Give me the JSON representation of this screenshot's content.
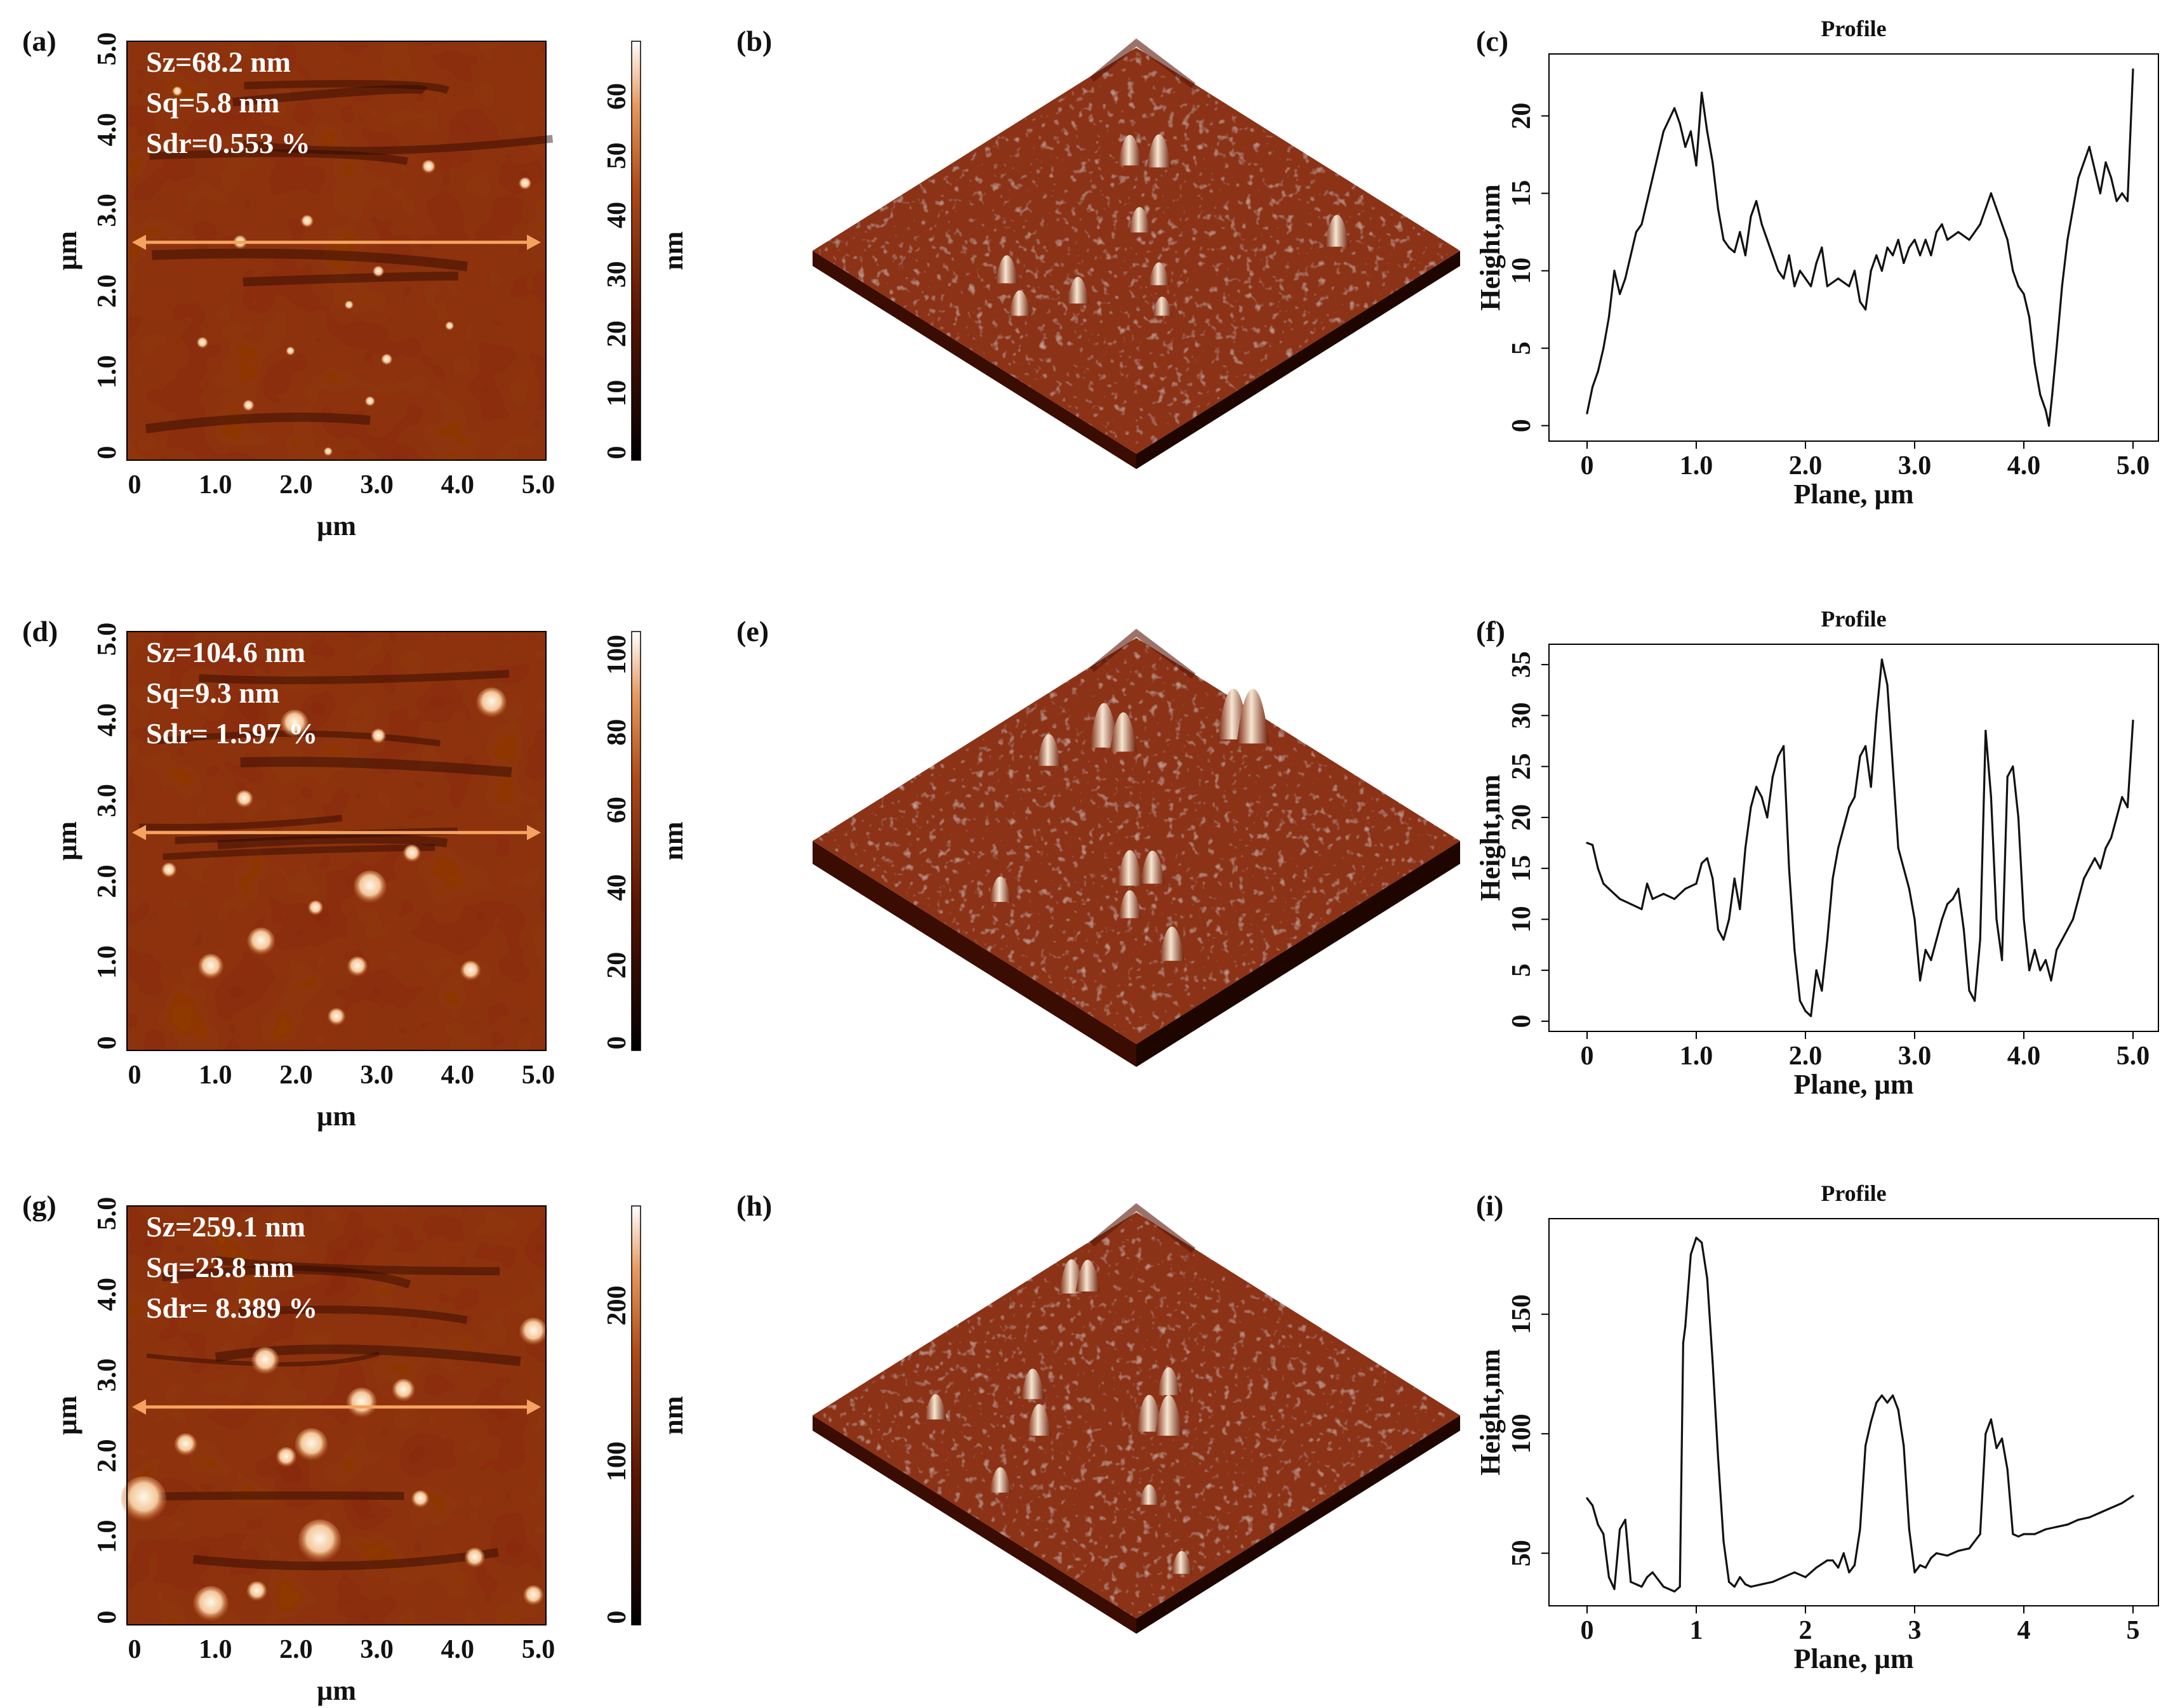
{
  "figure": {
    "rows": [
      {
        "labels": {
          "map": "(a)",
          "view3d": "(b)",
          "profile": "(c)"
        },
        "stats": [
          "Sz=68.2 nm",
          "Sq=5.8 nm",
          "Sdr=0.553 %"
        ],
        "map_x_ticks": [
          "0",
          "1.0",
          "2.0",
          "3.0",
          "4.0",
          "5.0"
        ],
        "map_y_ticks": [
          "0",
          "1.0",
          "2.0",
          "3.0",
          "4.0",
          "5.0"
        ],
        "map_x_label": "µm",
        "map_y_label": "µm",
        "colorbar_ticks": [
          "0",
          "10",
          "20",
          "30",
          "40",
          "50",
          "60"
        ],
        "colorbar_unit": "nm"
      },
      {
        "labels": {
          "map": "(d)",
          "view3d": "(e)",
          "profile": "(f)"
        },
        "stats": [
          "Sz=104.6 nm",
          "Sq=9.3 nm",
          "Sdr= 1.597 %"
        ],
        "map_x_ticks": [
          "0",
          "1.0",
          "2.0",
          "3.0",
          "4.0",
          "5.0"
        ],
        "map_y_ticks": [
          "0",
          "1.0",
          "2.0",
          "3.0",
          "4.0",
          "5.0"
        ],
        "map_x_label": "µm",
        "map_y_label": "µm",
        "colorbar_ticks": [
          "0",
          "20",
          "40",
          "60",
          "80",
          "100"
        ],
        "colorbar_unit": "nm"
      },
      {
        "labels": {
          "map": "(g)",
          "view3d": "(h)",
          "profile": "(i)"
        },
        "stats": [
          "Sz=259.1 nm",
          "Sq=23.8 nm",
          "Sdr= 8.389 %"
        ],
        "map_x_ticks": [
          "0",
          "1.0",
          "2.0",
          "3.0",
          "4.0",
          "5.0"
        ],
        "map_y_ticks": [
          "0",
          "1.0",
          "2.0",
          "3.0",
          "4.0",
          "5.0"
        ],
        "map_x_label": "µm",
        "map_y_label": "µm",
        "colorbar_ticks": [
          "0",
          "100",
          "200"
        ],
        "colorbar_unit": "nm"
      }
    ],
    "colors": {
      "afm_dark": "#2a0600",
      "afm_mid": "#8a2a0c",
      "afm_bright": "#fff2e0",
      "profile_arrow": "#f4a460",
      "line": "#111111"
    }
  },
  "chart_data": [
    {
      "type": "line",
      "title": "Profile",
      "xlabel": "Plane, µm",
      "ylabel": "Height,nm",
      "xlim": [
        0,
        5
      ],
      "ylim": [
        -1,
        24
      ],
      "x_ticks": [
        "0",
        "1.0",
        "2.0",
        "3.0",
        "4.0",
        "5.0"
      ],
      "y_ticks": [
        "0",
        "5",
        "10",
        "15",
        "20"
      ],
      "x": [
        0,
        0.05,
        0.1,
        0.15,
        0.2,
        0.25,
        0.3,
        0.35,
        0.4,
        0.45,
        0.5,
        0.55,
        0.6,
        0.7,
        0.8,
        0.85,
        0.9,
        0.95,
        1.0,
        1.05,
        1.1,
        1.15,
        1.2,
        1.25,
        1.3,
        1.35,
        1.4,
        1.45,
        1.5,
        1.55,
        1.6,
        1.65,
        1.7,
        1.75,
        1.8,
        1.85,
        1.9,
        1.95,
        2.0,
        2.05,
        2.1,
        2.15,
        2.2,
        2.3,
        2.4,
        2.45,
        2.5,
        2.55,
        2.6,
        2.65,
        2.7,
        2.75,
        2.8,
        2.85,
        2.9,
        2.95,
        3.0,
        3.05,
        3.1,
        3.15,
        3.2,
        3.25,
        3.3,
        3.4,
        3.5,
        3.6,
        3.7,
        3.75,
        3.8,
        3.85,
        3.9,
        3.95,
        4.0,
        4.05,
        4.1,
        4.15,
        4.2,
        4.23,
        4.26,
        4.3,
        4.35,
        4.4,
        4.45,
        4.5,
        4.55,
        4.6,
        4.65,
        4.7,
        4.75,
        4.8,
        4.85,
        4.9,
        4.95,
        5.0
      ],
      "values": [
        0.8,
        2.5,
        3.5,
        5,
        7,
        10,
        8.5,
        9.5,
        11,
        12.5,
        13,
        14.5,
        16,
        19,
        20.5,
        19.5,
        18,
        19,
        16.8,
        21.5,
        19,
        17,
        14,
        12,
        11.5,
        11.2,
        12.5,
        11,
        13.5,
        14.5,
        13,
        12,
        11,
        10,
        9.5,
        11,
        9,
        10,
        9.5,
        9,
        10.5,
        11.5,
        9,
        9.5,
        9,
        10,
        8,
        7.5,
        10,
        11,
        10,
        11.5,
        11,
        12,
        10.5,
        11.5,
        12,
        11,
        12,
        11,
        12.5,
        13,
        12,
        12.5,
        12,
        13,
        15,
        14,
        13,
        12,
        10,
        9,
        8.5,
        7,
        4,
        2,
        1,
        0,
        2,
        5,
        9,
        12,
        14,
        16,
        17,
        18,
        16.5,
        15,
        17,
        16,
        14.5,
        15,
        14.5,
        23
      ]
    },
    {
      "type": "line",
      "title": "Profile",
      "xlabel": "Plane, µm",
      "ylabel": "Height,nm",
      "xlim": [
        0,
        5
      ],
      "ylim": [
        -1,
        37
      ],
      "x_ticks": [
        "0",
        "1.0",
        "2.0",
        "3.0",
        "4.0",
        "5.0"
      ],
      "y_ticks": [
        "0",
        "5",
        "10",
        "15",
        "20",
        "25",
        "30",
        "35"
      ],
      "x": [
        0,
        0.05,
        0.1,
        0.15,
        0.2,
        0.3,
        0.4,
        0.5,
        0.55,
        0.6,
        0.7,
        0.8,
        0.9,
        1.0,
        1.05,
        1.1,
        1.15,
        1.2,
        1.25,
        1.3,
        1.35,
        1.4,
        1.45,
        1.5,
        1.55,
        1.6,
        1.65,
        1.7,
        1.75,
        1.8,
        1.85,
        1.9,
        1.95,
        2.0,
        2.05,
        2.1,
        2.15,
        2.2,
        2.25,
        2.3,
        2.35,
        2.4,
        2.45,
        2.5,
        2.55,
        2.6,
        2.65,
        2.7,
        2.75,
        2.8,
        2.85,
        2.9,
        2.95,
        3.0,
        3.05,
        3.1,
        3.15,
        3.2,
        3.25,
        3.3,
        3.35,
        3.4,
        3.45,
        3.5,
        3.55,
        3.6,
        3.65,
        3.7,
        3.75,
        3.8,
        3.85,
        3.9,
        3.95,
        4.0,
        4.05,
        4.1,
        4.15,
        4.2,
        4.25,
        4.3,
        4.35,
        4.4,
        4.45,
        4.5,
        4.55,
        4.6,
        4.65,
        4.7,
        4.75,
        4.8,
        4.85,
        4.9,
        4.95,
        5.0
      ],
      "values": [
        17.5,
        17.3,
        15,
        13.5,
        13,
        12,
        11.5,
        11,
        13.5,
        12,
        12.5,
        12,
        13,
        13.5,
        15.5,
        16,
        14,
        9,
        8,
        10,
        14,
        11,
        17,
        21,
        23,
        22,
        20,
        24,
        26,
        27,
        15,
        7,
        2,
        1,
        0.5,
        5,
        3,
        8,
        14,
        17,
        19,
        21,
        22,
        26,
        27,
        23,
        30,
        35.5,
        33,
        25,
        17,
        15,
        13,
        10,
        4,
        7,
        6,
        8,
        10,
        11.5,
        12,
        13,
        9,
        3,
        2,
        8,
        28.5,
        22,
        10,
        6,
        24,
        25,
        20,
        10,
        5,
        7,
        5,
        6,
        4,
        7,
        8,
        9,
        10,
        12,
        14,
        15,
        16,
        15,
        17,
        18,
        20,
        22,
        21,
        29.5
      ]
    },
    {
      "type": "line",
      "title": "Profile",
      "xlabel": "Plane, µm",
      "ylabel": "Height,nm",
      "xlim": [
        0,
        5
      ],
      "ylim": [
        28,
        190
      ],
      "x_ticks": [
        "0",
        "1",
        "2",
        "3",
        "4",
        "5"
      ],
      "y_ticks": [
        "50",
        "100",
        "150"
      ],
      "x": [
        0,
        0.05,
        0.1,
        0.15,
        0.2,
        0.25,
        0.3,
        0.35,
        0.4,
        0.45,
        0.5,
        0.55,
        0.6,
        0.7,
        0.8,
        0.85,
        0.88,
        0.9,
        0.95,
        1.0,
        1.05,
        1.1,
        1.15,
        1.2,
        1.25,
        1.3,
        1.35,
        1.4,
        1.45,
        1.5,
        1.6,
        1.7,
        1.8,
        1.9,
        2.0,
        2.1,
        2.2,
        2.25,
        2.3,
        2.35,
        2.4,
        2.45,
        2.5,
        2.55,
        2.6,
        2.65,
        2.7,
        2.75,
        2.8,
        2.85,
        2.9,
        2.95,
        3.0,
        3.05,
        3.1,
        3.15,
        3.2,
        3.3,
        3.4,
        3.5,
        3.55,
        3.6,
        3.65,
        3.7,
        3.75,
        3.8,
        3.85,
        3.9,
        3.95,
        4.0,
        4.1,
        4.2,
        4.3,
        4.4,
        4.5,
        4.6,
        4.7,
        4.8,
        4.9,
        5.0
      ],
      "values": [
        73,
        70,
        62,
        58,
        40,
        35,
        60,
        64,
        38,
        37,
        36,
        40,
        42,
        36,
        34,
        36,
        138,
        145,
        175,
        182,
        180,
        165,
        130,
        90,
        55,
        38,
        36,
        40,
        37,
        36,
        37,
        38,
        40,
        42,
        40,
        44,
        47,
        47,
        44,
        50,
        42,
        45,
        60,
        95,
        105,
        113,
        116,
        113,
        116,
        110,
        95,
        60,
        42,
        45,
        44,
        48,
        50,
        49,
        51,
        52,
        55,
        58,
        100,
        106,
        94,
        98,
        85,
        58,
        57,
        58,
        58,
        60,
        61,
        62,
        64,
        65,
        67,
        69,
        71,
        74
      ]
    }
  ]
}
